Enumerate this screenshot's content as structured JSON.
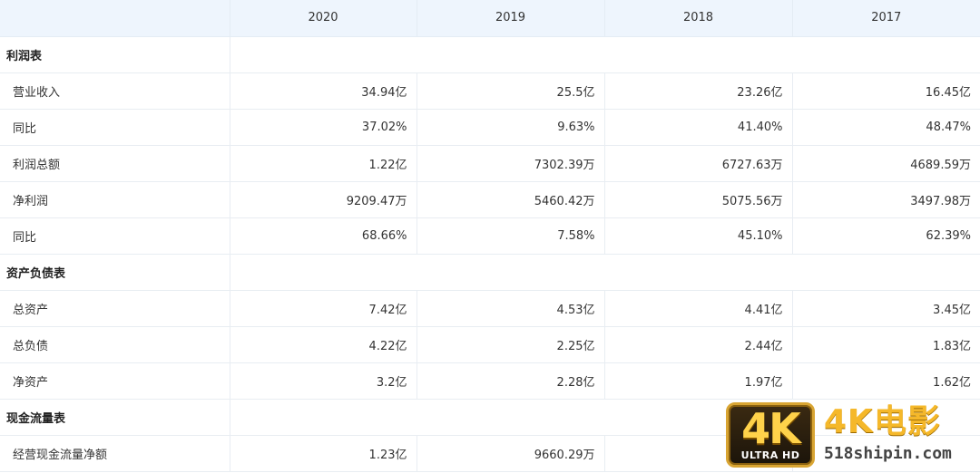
{
  "header": {
    "corner": "",
    "years": [
      "2020",
      "2019",
      "2018",
      "2017"
    ]
  },
  "sections": [
    {
      "title": "利润表",
      "rows": [
        {
          "label": "营业收入",
          "values": [
            "34.94亿",
            "25.5亿",
            "23.26亿",
            "16.45亿"
          ]
        },
        {
          "label": "同比",
          "values": [
            "37.02%",
            "9.63%",
            "41.40%",
            "48.47%"
          ]
        },
        {
          "label": "利润总额",
          "values": [
            "1.22亿",
            "7302.39万",
            "6727.63万",
            "4689.59万"
          ]
        },
        {
          "label": "净利润",
          "values": [
            "9209.47万",
            "5460.42万",
            "5075.56万",
            "3497.98万"
          ]
        },
        {
          "label": "同比",
          "values": [
            "68.66%",
            "7.58%",
            "45.10%",
            "62.39%"
          ]
        }
      ]
    },
    {
      "title": "资产负债表",
      "rows": [
        {
          "label": "总资产",
          "values": [
            "7.42亿",
            "4.53亿",
            "4.41亿",
            "3.45亿"
          ]
        },
        {
          "label": "总负债",
          "values": [
            "4.22亿",
            "2.25亿",
            "2.44亿",
            "1.83亿"
          ]
        },
        {
          "label": "净资产",
          "values": [
            "3.2亿",
            "2.28亿",
            "1.97亿",
            "1.62亿"
          ]
        }
      ]
    },
    {
      "title": "现金流量表",
      "rows": [
        {
          "label": "经营现金流量净额",
          "values": [
            "1.23亿",
            "9660.29万",
            "",
            ""
          ]
        }
      ]
    }
  ],
  "watermark": {
    "badge_text": "4K",
    "badge_subtext": "ULTRA HD",
    "title": "4K电影",
    "url": "518shipin.com",
    "color_gold": "#f5b82a"
  }
}
